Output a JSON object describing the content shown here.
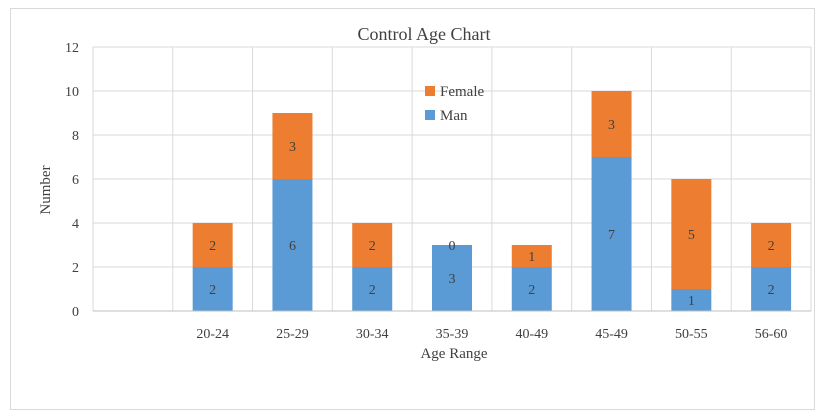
{
  "chart_data": {
    "type": "bar",
    "stacked": true,
    "title": "Control Age Chart",
    "xlabel": "Age Range",
    "ylabel": "Number",
    "categories": [
      "",
      "20-24",
      "25-29",
      "30-34",
      "35-39",
      "40-49",
      "45-49",
      "50-55",
      "56-60"
    ],
    "series": [
      {
        "name": "Man",
        "color": "#5b9bd5",
        "values": [
          null,
          2,
          6,
          2,
          3,
          2,
          7,
          1,
          2
        ]
      },
      {
        "name": "Female",
        "color": "#ed7d31",
        "values": [
          null,
          2,
          3,
          2,
          0,
          1,
          3,
          5,
          2
        ]
      }
    ],
    "ylim": [
      0,
      12
    ],
    "yticks": [
      0,
      2,
      4,
      6,
      8,
      10,
      12
    ],
    "grid": {
      "horizontal": true,
      "vertical": true
    },
    "legend": {
      "position": "top-center",
      "order": [
        "Female",
        "Man"
      ]
    },
    "data_labels": true
  }
}
